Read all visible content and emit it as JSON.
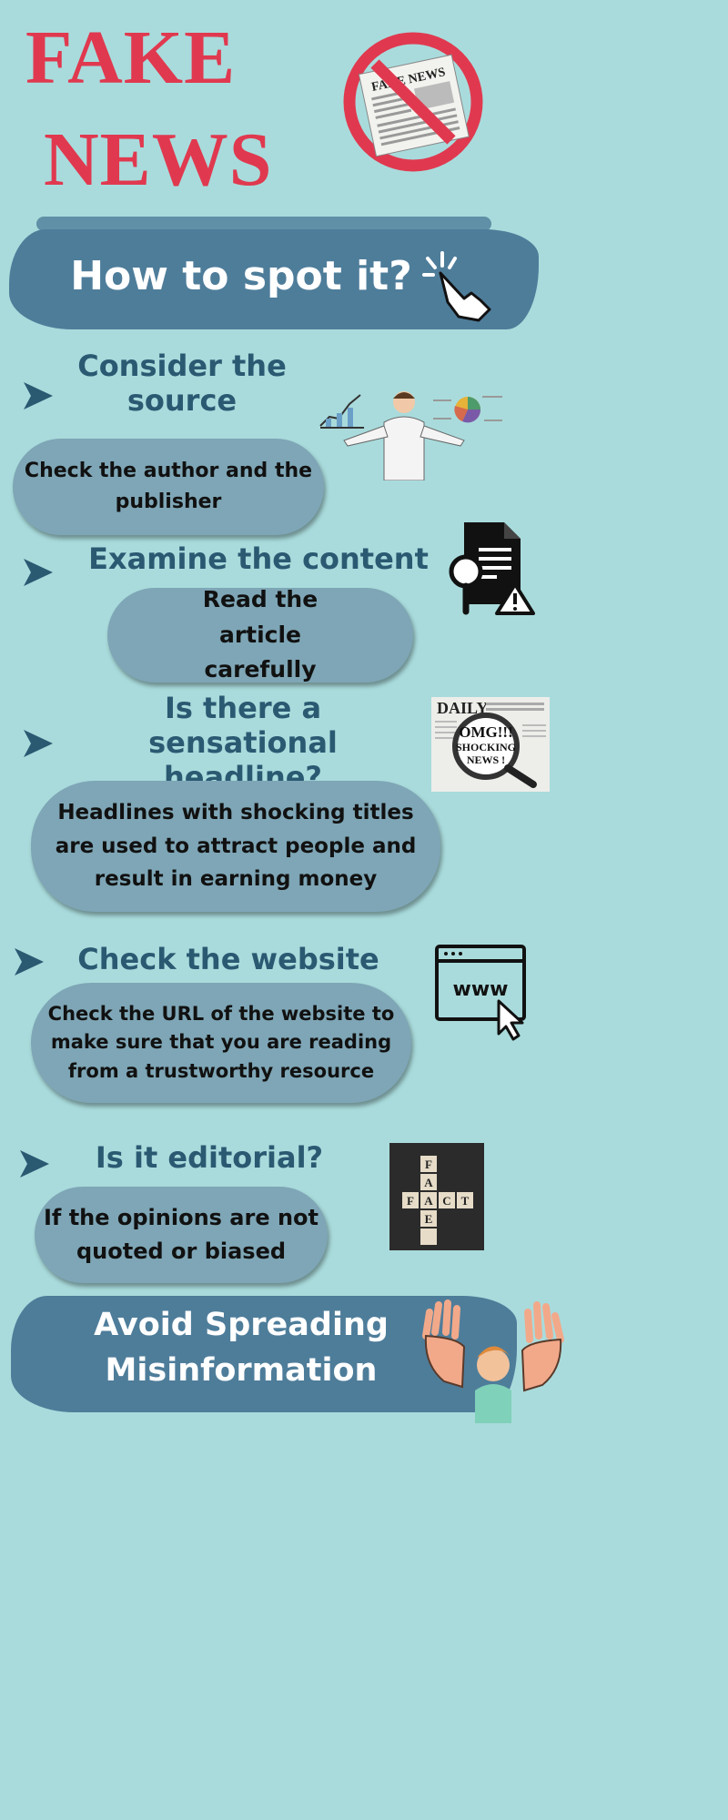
{
  "title": {
    "line1": "FAKE",
    "line2": "NEWS"
  },
  "badge": {
    "newspaper_text": "FAKE NEWS"
  },
  "banner": {
    "text": "How to spot it?"
  },
  "sections": [
    {
      "heading": "Consider the source",
      "body": "Check the author and the publisher"
    },
    {
      "heading": "Examine the content",
      "body": "Read the article carefully"
    },
    {
      "heading": "Is there a sensational headline?",
      "body": "Headlines with shocking titles are used to attract people and  result in earning money"
    },
    {
      "heading": "Check the website",
      "body": "Check the URL of the website to make sure that you are reading from a trustworthy resource"
    },
    {
      "heading": "Is it editorial?",
      "body": "If the opinions are not quoted or biased"
    }
  ],
  "icons": {
    "headline_image": {
      "line1": "OMG!!!",
      "line2": "SHOCKING",
      "line3": "NEWS !",
      "masthead": "DAILY"
    },
    "www": "www",
    "fact_tiles": {
      "across": "FACT",
      "down": "FAKE"
    }
  },
  "footer": {
    "line1": "Avoid Spreading",
    "line2": "Misinformation"
  },
  "colors": {
    "background": "#a9dbdc",
    "title_red": "#e0394f",
    "banner_blue": "#4e7d9a",
    "heading": "#2a5972",
    "pill": "#7ea6b6"
  }
}
